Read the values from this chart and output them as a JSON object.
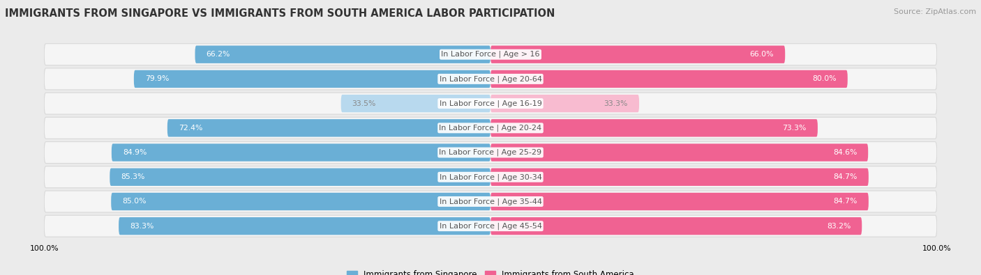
{
  "title": "IMMIGRANTS FROM SINGAPORE VS IMMIGRANTS FROM SOUTH AMERICA LABOR PARTICIPATION",
  "source": "Source: ZipAtlas.com",
  "categories": [
    "In Labor Force | Age > 16",
    "In Labor Force | Age 20-64",
    "In Labor Force | Age 16-19",
    "In Labor Force | Age 20-24",
    "In Labor Force | Age 25-29",
    "In Labor Force | Age 30-34",
    "In Labor Force | Age 35-44",
    "In Labor Force | Age 45-54"
  ],
  "singapore_values": [
    66.2,
    79.9,
    33.5,
    72.4,
    84.9,
    85.3,
    85.0,
    83.3
  ],
  "south_america_values": [
    66.0,
    80.0,
    33.3,
    73.3,
    84.6,
    84.7,
    84.7,
    83.2
  ],
  "singapore_color_dark": "#6aafd6",
  "singapore_color_light": "#b8d9ee",
  "south_america_color_dark": "#f06292",
  "south_america_color_light": "#f8bbd0",
  "singapore_label": "Immigrants from Singapore",
  "south_america_label": "Immigrants from South America",
  "bg_color": "#ebebeb",
  "row_bg_color": "#f5f5f5",
  "row_border_color": "#d8d8d8",
  "max_value": 100.0,
  "threshold_dark": 40.0,
  "title_fontsize": 10.5,
  "cat_fontsize": 8.0,
  "value_fontsize": 7.8,
  "legend_fontsize": 8.5,
  "source_fontsize": 8.0
}
